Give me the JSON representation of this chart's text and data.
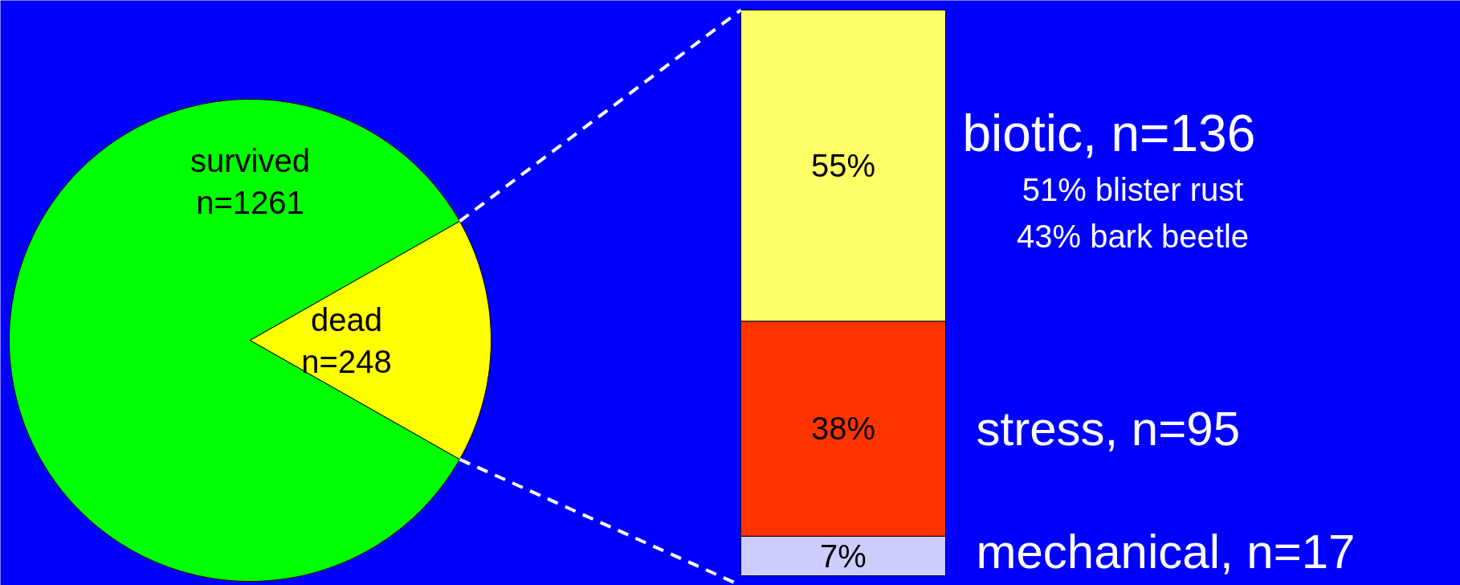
{
  "chart_data": [
    {
      "type": "pie",
      "categories": [
        "survived",
        "dead"
      ],
      "values": [
        1261,
        248
      ],
      "colors": [
        "#00ff00",
        "#ffff00"
      ],
      "value_labels": [
        "n=1261",
        "n=248"
      ]
    },
    {
      "type": "bar",
      "stacked": true,
      "categories": [
        null
      ],
      "ylim": [
        0,
        100
      ],
      "legend": false,
      "series": [
        {
          "name": "mechanical, n=17",
          "color": "#ccccff",
          "values": [
            7
          ],
          "value_labels": [
            "7%"
          ]
        },
        {
          "name": "stress, n=95",
          "color": "#ff3300",
          "values": [
            38
          ],
          "value_labels": [
            "38%"
          ]
        },
        {
          "name": "biotic, n=136",
          "color": "#ffff66",
          "values": [
            55
          ],
          "value_labels": [
            "55%"
          ]
        }
      ],
      "annotations": [
        "51% blister rust",
        "43% bark beetle"
      ]
    }
  ]
}
